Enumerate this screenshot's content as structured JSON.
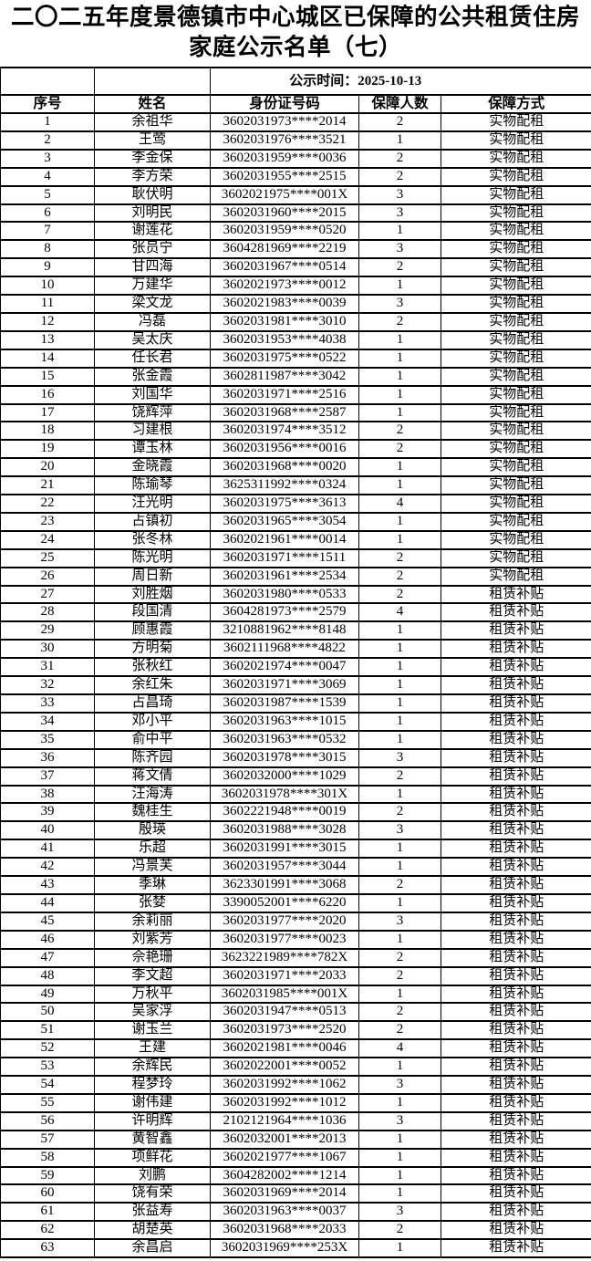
{
  "title": "二〇二五年度景德镇市中心城区已保障的公共租赁住房家庭公示名单（七）",
  "publish_time": "公示时间：2025-10-13",
  "columns": [
    "序号",
    "姓名",
    "身份证号码",
    "保障人数",
    "保障方式"
  ],
  "colors": {
    "text": "#000000",
    "border": "#000000",
    "background": "#ffffff"
  },
  "rows": [
    [
      "1",
      "余祖华",
      "3602031973****2014",
      "2",
      "实物配租"
    ],
    [
      "2",
      "王莺",
      "3602031976****3521",
      "1",
      "实物配租"
    ],
    [
      "3",
      "李金保",
      "3602031959****0036",
      "2",
      "实物配租"
    ],
    [
      "4",
      "李方荣",
      "3602031955****2515",
      "2",
      "实物配租"
    ],
    [
      "5",
      "耿伏明",
      "3602021975****001X",
      "3",
      "实物配租"
    ],
    [
      "6",
      "刘明民",
      "3602031960****2015",
      "3",
      "实物配租"
    ],
    [
      "7",
      "谢莲花",
      "3602031959****0520",
      "1",
      "实物配租"
    ],
    [
      "8",
      "张员宁",
      "3604281969****2219",
      "3",
      "实物配租"
    ],
    [
      "9",
      "甘四海",
      "3602031967****0514",
      "2",
      "实物配租"
    ],
    [
      "10",
      "万建华",
      "3602021973****0012",
      "1",
      "实物配租"
    ],
    [
      "11",
      "梁文龙",
      "3602021983****0039",
      "3",
      "实物配租"
    ],
    [
      "12",
      "冯磊",
      "3602031981****3010",
      "2",
      "实物配租"
    ],
    [
      "13",
      "吴太庆",
      "3602031953****4038",
      "1",
      "实物配租"
    ],
    [
      "14",
      "任长君",
      "3602031975****0522",
      "1",
      "实物配租"
    ],
    [
      "15",
      "张金霞",
      "3602811987****3042",
      "1",
      "实物配租"
    ],
    [
      "16",
      "刘国华",
      "3602031971****2516",
      "1",
      "实物配租"
    ],
    [
      "17",
      "饶辉萍",
      "3602031968****2587",
      "1",
      "实物配租"
    ],
    [
      "18",
      "习建根",
      "3602031974****3512",
      "2",
      "实物配租"
    ],
    [
      "19",
      "谭玉林",
      "3602031956****0016",
      "2",
      "实物配租"
    ],
    [
      "20",
      "金晓霞",
      "3602031968****0020",
      "1",
      "实物配租"
    ],
    [
      "21",
      "陈瑜琴",
      "3625311992****0324",
      "1",
      "实物配租"
    ],
    [
      "22",
      "汪光明",
      "3602031975****3613",
      "4",
      "实物配租"
    ],
    [
      "23",
      "占镇初",
      "3602031965****3054",
      "1",
      "实物配租"
    ],
    [
      "24",
      "张冬林",
      "3602021961****0014",
      "1",
      "实物配租"
    ],
    [
      "25",
      "陈光明",
      "3602031971****1511",
      "2",
      "实物配租"
    ],
    [
      "26",
      "周日新",
      "3602031961****2534",
      "2",
      "实物配租"
    ],
    [
      "27",
      "刘胜烟",
      "3602031980****0533",
      "2",
      "租赁补贴"
    ],
    [
      "28",
      "段国清",
      "3604281973****2579",
      "4",
      "租赁补贴"
    ],
    [
      "29",
      "顾惠霞",
      "3210881962****8148",
      "1",
      "租赁补贴"
    ],
    [
      "30",
      "方明菊",
      "3602111968****4822",
      "1",
      "租赁补贴"
    ],
    [
      "31",
      "张秋红",
      "3602021974****0047",
      "1",
      "租赁补贴"
    ],
    [
      "32",
      "余红朱",
      "3602031971****3069",
      "1",
      "租赁补贴"
    ],
    [
      "33",
      "占昌琦",
      "3602031987****1539",
      "1",
      "租赁补贴"
    ],
    [
      "34",
      "邓小平",
      "3602031963****1015",
      "1",
      "租赁补贴"
    ],
    [
      "35",
      "俞中平",
      "3602031963****0532",
      "1",
      "租赁补贴"
    ],
    [
      "36",
      "陈齐园",
      "3602031978****3015",
      "3",
      "租赁补贴"
    ],
    [
      "37",
      "蒋文倩",
      "3602032000****1029",
      "2",
      "租赁补贴"
    ],
    [
      "38",
      "汪海涛",
      "3602031978****301X",
      "1",
      "租赁补贴"
    ],
    [
      "39",
      "魏桂生",
      "3602221948****0019",
      "2",
      "租赁补贴"
    ],
    [
      "40",
      "殷瑛",
      "3602031988****3028",
      "3",
      "租赁补贴"
    ],
    [
      "41",
      "乐超",
      "3602031991****3015",
      "1",
      "租赁补贴"
    ],
    [
      "42",
      "冯景芙",
      "3602031957****3044",
      "1",
      "租赁补贴"
    ],
    [
      "43",
      "季琳",
      "3623301991****3068",
      "2",
      "租赁补贴"
    ],
    [
      "44",
      "张婪",
      "3390052001****6220",
      "1",
      "租赁补贴"
    ],
    [
      "45",
      "余莉丽",
      "3602031977****2020",
      "3",
      "租赁补贴"
    ],
    [
      "46",
      "刘紫芳",
      "3602031977****0023",
      "1",
      "租赁补贴"
    ],
    [
      "47",
      "佘艳珊",
      "3623221989****782X",
      "2",
      "租赁补贴"
    ],
    [
      "48",
      "李文超",
      "3602031971****2033",
      "2",
      "租赁补贴"
    ],
    [
      "49",
      "万秋平",
      "3602031985****001X",
      "1",
      "租赁补贴"
    ],
    [
      "50",
      "吴家浮",
      "3602031947****0513",
      "2",
      "租赁补贴"
    ],
    [
      "51",
      "谢玉兰",
      "3602031973****2520",
      "2",
      "租赁补贴"
    ],
    [
      "52",
      "王建",
      "3602021981****0046",
      "4",
      "租赁补贴"
    ],
    [
      "53",
      "余辉民",
      "3602022001****0052",
      "1",
      "租赁补贴"
    ],
    [
      "54",
      "程梦玲",
      "3602031992****1062",
      "3",
      "租赁补贴"
    ],
    [
      "55",
      "谢伟建",
      "3602031992****1012",
      "1",
      "租赁补贴"
    ],
    [
      "56",
      "许明辉",
      "2102121964****1036",
      "3",
      "租赁补贴"
    ],
    [
      "57",
      "黄智鑫",
      "3602032001****2013",
      "1",
      "租赁补贴"
    ],
    [
      "58",
      "项鲜花",
      "3602021977****1067",
      "1",
      "租赁补贴"
    ],
    [
      "59",
      "刘鹏",
      "3604282002****1214",
      "1",
      "租赁补贴"
    ],
    [
      "60",
      "饶有荣",
      "3602031969****2014",
      "1",
      "租赁补贴"
    ],
    [
      "61",
      "张益寿",
      "3602031963****0037",
      "3",
      "租赁补贴"
    ],
    [
      "62",
      "胡楚英",
      "3602031968****2033",
      "2",
      "租赁补贴"
    ],
    [
      "63",
      "余昌启",
      "3602031969****253X",
      "1",
      "租赁补贴"
    ]
  ]
}
